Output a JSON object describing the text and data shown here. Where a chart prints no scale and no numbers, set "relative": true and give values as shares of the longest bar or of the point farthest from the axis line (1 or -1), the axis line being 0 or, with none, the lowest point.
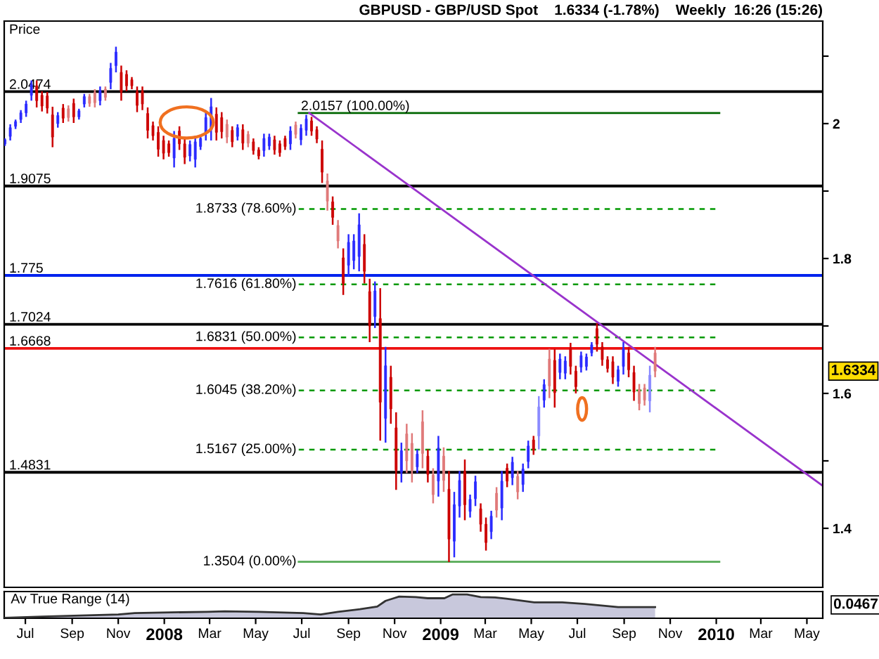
{
  "chart_data": [
    {
      "type": "candlestick",
      "title": "GBPUSD - GBP/USD Spot    1.6334 (-1.78%)    Weekly  16:26 (15:26)",
      "ylabel": "Price",
      "x": [
        "2007-06-04",
        "2007-06-11",
        "2007-06-18",
        "2007-06-25",
        "2007-07-02",
        "2007-07-09",
        "2007-07-16",
        "2007-07-23",
        "2007-07-30",
        "2007-08-06",
        "2007-08-13",
        "2007-08-20",
        "2007-08-27",
        "2007-09-03",
        "2007-09-10",
        "2007-09-17",
        "2007-09-24",
        "2007-10-01",
        "2007-10-08",
        "2007-10-15",
        "2007-10-22",
        "2007-10-29",
        "2007-11-05",
        "2007-11-12",
        "2007-11-19",
        "2007-11-26",
        "2007-12-03",
        "2007-12-10",
        "2007-12-17",
        "2007-12-24",
        "2007-12-31",
        "2008-01-07",
        "2008-01-14",
        "2008-01-21",
        "2008-01-28",
        "2008-02-04",
        "2008-02-11",
        "2008-02-18",
        "2008-02-25",
        "2008-03-03",
        "2008-03-10",
        "2008-03-17",
        "2008-03-24",
        "2008-03-31",
        "2008-04-07",
        "2008-04-14",
        "2008-04-21",
        "2008-04-28",
        "2008-05-05",
        "2008-05-12",
        "2008-05-19",
        "2008-05-26",
        "2008-06-02",
        "2008-06-09",
        "2008-06-16",
        "2008-06-23",
        "2008-06-30",
        "2008-07-07",
        "2008-07-14",
        "2008-07-21",
        "2008-07-28",
        "2008-08-04",
        "2008-08-11",
        "2008-08-18",
        "2008-08-25",
        "2008-09-01",
        "2008-09-08",
        "2008-09-15",
        "2008-09-22",
        "2008-09-29",
        "2008-10-06",
        "2008-10-13",
        "2008-10-20",
        "2008-10-27",
        "2008-11-03",
        "2008-11-10",
        "2008-11-17",
        "2008-11-24",
        "2008-12-01",
        "2008-12-08",
        "2008-12-15",
        "2008-12-22",
        "2008-12-29",
        "2009-01-05",
        "2009-01-12",
        "2009-01-19",
        "2009-01-26",
        "2009-02-02",
        "2009-02-09",
        "2009-02-16",
        "2009-02-23",
        "2009-03-02",
        "2009-03-09",
        "2009-03-16",
        "2009-03-23",
        "2009-03-30",
        "2009-04-06",
        "2009-04-13",
        "2009-04-20",
        "2009-04-27",
        "2009-05-04",
        "2009-05-11",
        "2009-05-18",
        "2009-05-25",
        "2009-06-01",
        "2009-06-08",
        "2009-06-15",
        "2009-06-22",
        "2009-06-29",
        "2009-07-06",
        "2009-07-13",
        "2009-07-20",
        "2009-07-27",
        "2009-08-03",
        "2009-08-10",
        "2009-08-17",
        "2009-08-24",
        "2009-08-31",
        "2009-09-07",
        "2009-09-14",
        "2009-09-21",
        "2009-09-28",
        "2009-10-05",
        "2009-10-12"
      ],
      "ohlc": [
        [
          1.97,
          1.978,
          1.967,
          1.976
        ],
        [
          1.981,
          1.999,
          1.975,
          1.994
        ],
        [
          1.996,
          2.006,
          1.992,
          2.003
        ],
        [
          2.006,
          2.02,
          2.001,
          2.016
        ],
        [
          2.016,
          2.034,
          2.01,
          2.029
        ],
        [
          2.042,
          2.064,
          2.034,
          2.058
        ],
        [
          2.056,
          2.064,
          2.024,
          2.034
        ],
        [
          2.042,
          2.048,
          2.018,
          2.026
        ],
        [
          2.041,
          2.047,
          2.015,
          2.023
        ],
        [
          2.013,
          2.025,
          1.965,
          1.98
        ],
        [
          2.0,
          2.017,
          1.994,
          2.012
        ],
        [
          2.023,
          2.029,
          2.001,
          2.008
        ],
        [
          2.022,
          2.027,
          2.003,
          2.009
        ],
        [
          2.03,
          2.037,
          2.001,
          2.01
        ],
        [
          2.01,
          2.022,
          2.006,
          2.019
        ],
        [
          2.029,
          2.044,
          2.024,
          2.04
        ],
        [
          2.04,
          2.044,
          2.025,
          2.03
        ],
        [
          2.046,
          2.051,
          2.024,
          2.031
        ],
        [
          2.034,
          2.055,
          2.027,
          2.049
        ],
        [
          2.051,
          2.055,
          2.034,
          2.039
        ],
        [
          2.061,
          2.09,
          2.051,
          2.082
        ],
        [
          2.086,
          2.114,
          2.076,
          2.106
        ],
        [
          2.076,
          2.086,
          2.034,
          2.047
        ],
        [
          2.073,
          2.079,
          2.048,
          2.056
        ],
        [
          2.065,
          2.069,
          2.051,
          2.056
        ],
        [
          2.047,
          2.055,
          2.017,
          2.027
        ],
        [
          2.048,
          2.055,
          2.02,
          2.029
        ],
        [
          2.015,
          2.024,
          1.978,
          1.99
        ],
        [
          1.997,
          2.003,
          1.975,
          1.982
        ],
        [
          1.987,
          1.996,
          1.951,
          1.962
        ],
        [
          1.975,
          1.982,
          1.947,
          1.956
        ],
        [
          1.97,
          1.975,
          1.951,
          1.957
        ],
        [
          1.949,
          1.989,
          1.935,
          1.978
        ],
        [
          1.989,
          1.996,
          1.961,
          1.97
        ],
        [
          1.97,
          1.978,
          1.94,
          1.95
        ],
        [
          1.952,
          1.975,
          1.944,
          1.969
        ],
        [
          1.947,
          1.982,
          1.935,
          1.973
        ],
        [
          1.966,
          1.982,
          1.961,
          1.978
        ],
        [
          1.986,
          2.017,
          1.975,
          2.009
        ],
        [
          1.991,
          2.038,
          1.975,
          2.025
        ],
        [
          2.014,
          2.024,
          1.975,
          1.987
        ],
        [
          2.009,
          2.017,
          1.978,
          1.988
        ],
        [
          1.999,
          2.006,
          1.971,
          1.98
        ],
        [
          1.99,
          1.996,
          1.965,
          1.973
        ],
        [
          1.981,
          1.999,
          1.975,
          1.994
        ],
        [
          1.991,
          1.999,
          1.961,
          1.971
        ],
        [
          1.984,
          1.989,
          1.965,
          1.971
        ],
        [
          1.973,
          1.978,
          1.954,
          1.96
        ],
        [
          1.961,
          1.965,
          1.947,
          1.952
        ],
        [
          1.96,
          1.985,
          1.951,
          1.978
        ],
        [
          1.967,
          1.985,
          1.961,
          1.98
        ],
        [
          1.976,
          1.982,
          1.954,
          1.961
        ],
        [
          1.97,
          1.975,
          1.951,
          1.957
        ],
        [
          1.978,
          1.982,
          1.961,
          1.966
        ],
        [
          1.97,
          1.996,
          1.961,
          1.989
        ],
        [
          1.998,
          2.003,
          1.978,
          1.984
        ],
        [
          1.976,
          1.999,
          1.968,
          1.993
        ],
        [
          1.99,
          2.013,
          1.982,
          2.007
        ],
        [
          2.004,
          2.01,
          1.982,
          1.989
        ],
        [
          1.991,
          1.996,
          1.971,
          1.977
        ],
        [
          1.962,
          1.975,
          1.912,
          1.928
        ],
        [
          1.915,
          1.926,
          1.871,
          1.885
        ],
        [
          1.884,
          1.892,
          1.85,
          1.861
        ],
        [
          1.849,
          1.857,
          1.815,
          1.826
        ],
        [
          1.801,
          1.815,
          1.746,
          1.763
        ],
        [
          1.79,
          1.836,
          1.774,
          1.824
        ],
        [
          1.797,
          1.836,
          1.784,
          1.826
        ],
        [
          1.803,
          1.867,
          1.781,
          1.85
        ],
        [
          1.821,
          1.836,
          1.763,
          1.781
        ],
        [
          1.751,
          1.77,
          1.676,
          1.7
        ],
        [
          1.714,
          1.766,
          1.697,
          1.752
        ],
        [
          1.711,
          1.756,
          1.53,
          1.587
        ],
        [
          1.563,
          1.669,
          1.527,
          1.641
        ],
        [
          1.624,
          1.641,
          1.555,
          1.577
        ],
        [
          1.549,
          1.572,
          1.457,
          1.486
        ],
        [
          1.483,
          1.527,
          1.468,
          1.515
        ],
        [
          1.54,
          1.555,
          1.482,
          1.5
        ],
        [
          1.526,
          1.541,
          1.468,
          1.486
        ],
        [
          1.491,
          1.517,
          1.482,
          1.51
        ],
        [
          1.558,
          1.575,
          1.489,
          1.511
        ],
        [
          1.507,
          1.517,
          1.468,
          1.48
        ],
        [
          1.479,
          1.489,
          1.437,
          1.45
        ],
        [
          1.47,
          1.537,
          1.447,
          1.519
        ],
        [
          1.507,
          1.52,
          1.454,
          1.471
        ],
        [
          1.458,
          1.485,
          1.35,
          1.384
        ],
        [
          1.381,
          1.454,
          1.357,
          1.435
        ],
        [
          1.433,
          1.485,
          1.416,
          1.471
        ],
        [
          1.484,
          1.502,
          1.412,
          1.435
        ],
        [
          1.425,
          1.45,
          1.416,
          1.443
        ],
        [
          1.444,
          1.478,
          1.433,
          1.469
        ],
        [
          1.429,
          1.437,
          1.395,
          1.406
        ],
        [
          1.406,
          1.416,
          1.367,
          1.379
        ],
        [
          1.395,
          1.426,
          1.384,
          1.418
        ],
        [
          1.452,
          1.461,
          1.416,
          1.427
        ],
        [
          1.43,
          1.485,
          1.412,
          1.47
        ],
        [
          1.489,
          1.496,
          1.461,
          1.47
        ],
        [
          1.475,
          1.506,
          1.464,
          1.498
        ],
        [
          1.477,
          1.485,
          1.443,
          1.454
        ],
        [
          1.465,
          1.496,
          1.454,
          1.488
        ],
        [
          1.499,
          1.53,
          1.489,
          1.522
        ],
        [
          1.531,
          1.537,
          1.509,
          1.516
        ],
        [
          1.537,
          1.596,
          1.517,
          1.58
        ],
        [
          1.59,
          1.621,
          1.579,
          1.613
        ],
        [
          1.651,
          1.666,
          1.593,
          1.611
        ],
        [
          1.649,
          1.666,
          1.579,
          1.601
        ],
        [
          1.631,
          1.659,
          1.621,
          1.651
        ],
        [
          1.63,
          1.655,
          1.621,
          1.648
        ],
        [
          1.666,
          1.675,
          1.628,
          1.64
        ],
        [
          1.633,
          1.641,
          1.6,
          1.61
        ],
        [
          1.639,
          1.662,
          1.631,
          1.656
        ],
        [
          1.64,
          1.659,
          1.634,
          1.654
        ],
        [
          1.66,
          1.676,
          1.655,
          1.672
        ],
        [
          1.696,
          1.704,
          1.662,
          1.673
        ],
        [
          1.669,
          1.676,
          1.641,
          1.65
        ],
        [
          1.65,
          1.655,
          1.631,
          1.637
        ],
        [
          1.647,
          1.655,
          1.614,
          1.624
        ],
        [
          1.618,
          1.641,
          1.61,
          1.635
        ],
        [
          1.64,
          1.676,
          1.628,
          1.666
        ],
        [
          1.66,
          1.669,
          1.624,
          1.635
        ],
        [
          1.631,
          1.641,
          1.589,
          1.602
        ],
        [
          1.606,
          1.614,
          1.575,
          1.585
        ],
        [
          1.608,
          1.614,
          1.582,
          1.59
        ],
        [
          1.589,
          1.641,
          1.572,
          1.627
        ],
        [
          1.66,
          1.669,
          1.624,
          1.633
        ]
      ],
      "colors": [
        "#2b2bff",
        "#2b2bff",
        "#2b2bff",
        "#2b2bff",
        "#2b2bff",
        "#2b2bff",
        "#cc0000",
        "#cc0000",
        "#cc0000",
        "#cc0000",
        "#2b2bff",
        "#cc0000",
        "#e07a7a",
        "#cc0000",
        "#2b2bff",
        "#2b2bff",
        "#e07a7a",
        "#e07a7a",
        "#2b2bff",
        "#e07a7a",
        "#2b2bff",
        "#2b2bff",
        "#cc0000",
        "#cc0000",
        "#cc0000",
        "#cc0000",
        "#cc0000",
        "#cc0000",
        "#cc0000",
        "#cc0000",
        "#cc0000",
        "#cc0000",
        "#2b2bff",
        "#cc0000",
        "#cc0000",
        "#2b2bff",
        "#2b2bff",
        "#2b2bff",
        "#2b2bff",
        "#2b2bff",
        "#cc0000",
        "#cc0000",
        "#e07a7a",
        "#cc0000",
        "#2b2bff",
        "#cc0000",
        "#e07a7a",
        "#cc0000",
        "#cc0000",
        "#2b2bff",
        "#2b2bff",
        "#cc0000",
        "#cc0000",
        "#cc0000",
        "#2b2bff",
        "#e07a7a",
        "#2b2bff",
        "#2b2bff",
        "#cc0000",
        "#cc0000",
        "#cc0000",
        "#e07a7a",
        "#cc0000",
        "#e07a7a",
        "#cc0000",
        "#2b2bff",
        "#2b2bff",
        "#2b2bff",
        "#cc0000",
        "#cc0000",
        "#2b2bff",
        "#cc0000",
        "#2b2bff",
        "#cc0000",
        "#cc0000",
        "#2b2bff",
        "#e07a7a",
        "#e07a7a",
        "#2b2bff",
        "#e07a7a",
        "#cc0000",
        "#e07a7a",
        "#2b2bff",
        "#e07a7a",
        "#cc0000",
        "#2b2bff",
        "#2b2bff",
        "#cc0000",
        "#2b2bff",
        "#2b2bff",
        "#cc0000",
        "#cc0000",
        "#2b2bff",
        "#e07a7a",
        "#2b2bff",
        "#cc0000",
        "#2b2bff",
        "#e07a7a",
        "#2b2bff",
        "#2b2bff",
        "#cc0000",
        "#8a8aff",
        "#2b2bff",
        "#e07a7a",
        "#cc0000",
        "#2b2bff",
        "#2b2bff",
        "#cc0000",
        "#cc0000",
        "#2b2bff",
        "#2b2bff",
        "#2b2bff",
        "#cc0000",
        "#cc0000",
        "#cc0000",
        "#cc0000",
        "#2b2bff",
        "#2b2bff",
        "#cc0000",
        "#cc0000",
        "#e07a7a",
        "#e07a7a",
        "#8a8aff",
        "#e07a7a"
      ],
      "series": [
        {
          "type": "line",
          "name": "2.0157 (100.00%)",
          "color": "#006600",
          "line_style": "solid",
          "x": [
            "2008-06-27",
            "2010-01-05"
          ],
          "values": [
            2.0157,
            2.0157
          ]
        },
        {
          "type": "line",
          "name": "1.8733 (78.60%)",
          "color": "#009900",
          "line_style": "dashed",
          "x": [
            "2008-06-27",
            "2010-01-05"
          ],
          "values": [
            1.8733,
            1.8733
          ]
        },
        {
          "type": "line",
          "name": "1.7616 (61.80%)",
          "color": "#009900",
          "line_style": "dashed",
          "x": [
            "2008-06-27",
            "2010-01-05"
          ],
          "values": [
            1.7616,
            1.7616
          ]
        },
        {
          "type": "line",
          "name": "1.6831 (50.00%)",
          "color": "#009900",
          "line_style": "dashed",
          "x": [
            "2008-06-27",
            "2010-01-05"
          ],
          "values": [
            1.6831,
            1.6831
          ]
        },
        {
          "type": "line",
          "name": "1.6045 (38.20%)",
          "color": "#009900",
          "line_style": "dashed",
          "x": [
            "2008-06-27",
            "2010-01-05"
          ],
          "values": [
            1.6045,
            1.6045
          ]
        },
        {
          "type": "line",
          "name": "1.5167 (25.00%)",
          "color": "#009900",
          "line_style": "dashed",
          "x": [
            "2008-06-27",
            "2010-01-05"
          ],
          "values": [
            1.5167,
            1.5167
          ]
        },
        {
          "type": "line",
          "name": "1.3504 (0.00%)",
          "color": "#55aa55",
          "line_style": "solid",
          "x": [
            "2008-06-27",
            "2010-01-05"
          ],
          "values": [
            1.3504,
            1.3504
          ]
        },
        {
          "type": "line",
          "color": "#9933cc",
          "line_style": "solid",
          "x": [
            "2008-07-11",
            "2010-05-22"
          ],
          "values": [
            2.0157,
            1.463
          ]
        }
      ],
      "ref_lines": [
        {
          "axis": "y",
          "value": 2.0474,
          "label": "2.0474",
          "color": "#000000"
        },
        {
          "axis": "y",
          "value": 1.9075,
          "label": "1.9075",
          "color": "#000000"
        },
        {
          "axis": "y",
          "value": 1.775,
          "label": "1.775",
          "color": "#0022ee"
        },
        {
          "axis": "y",
          "value": 1.7024,
          "label": "1.7024",
          "color": "#000000"
        },
        {
          "axis": "y",
          "value": 1.6668,
          "label": "1.6668",
          "color": "#ee1111"
        },
        {
          "axis": "y",
          "value": 1.4831,
          "label": "1.4831",
          "color": "#000000"
        }
      ],
      "annotations": [
        "1.6334"
      ],
      "xlim": [
        "2007-06-03",
        "2010-05-22"
      ],
      "ylim": [
        1.3125,
        2.152
      ],
      "yticks": [
        {
          "value": 1.4,
          "label": "1.4"
        },
        {
          "value": 1.5,
          "label": null
        },
        {
          "value": 1.6,
          "label": "1.6"
        },
        {
          "value": 1.7,
          "label": null
        },
        {
          "value": 1.8,
          "label": "1.8"
        },
        {
          "value": 1.9,
          "label": null
        },
        {
          "value": 2,
          "label": "2"
        },
        {
          "value": 2.1,
          "label": null
        }
      ],
      "tick_labels": "y"
    },
    {
      "type": "area",
      "title": "Av True Range (14)",
      "relative": true,
      "series": [
        {
          "color": "#c8c8dc",
          "x": [
            "2007-06-04",
            "2007-07-24",
            "2007-11-01",
            "2007-11-23",
            "2008-02-27",
            "2008-03-21",
            "2008-05-05",
            "2008-07-03",
            "2008-07-26",
            "2008-08-18",
            "2008-09-16",
            "2008-10-09",
            "2008-10-20",
            "2008-10-31",
            "2008-11-07",
            "2008-11-29",
            "2008-12-15",
            "2009-01-06",
            "2009-01-17",
            "2009-02-05",
            "2009-02-23",
            "2009-03-14",
            "2009-03-29",
            "2009-05-05",
            "2009-06-11",
            "2009-07-11",
            "2009-08-24",
            "2009-10-12"
          ],
          "values": [
            0.02,
            0.07,
            0.16,
            0.22,
            0.27,
            0.29,
            0.27,
            0.22,
            0.16,
            0.27,
            0.38,
            0.49,
            0.73,
            0.84,
            0.91,
            0.89,
            0.84,
            0.84,
            1.0,
            1.0,
            0.89,
            0.87,
            0.82,
            0.67,
            0.67,
            0.6,
            0.47,
            0.47
          ]
        }
      ],
      "annotations": [
        "0.0467"
      ],
      "xlim": [
        "2007-06-03",
        "2010-05-22"
      ],
      "xticks": [
        {
          "value": "2007-07-01",
          "label": "Jul"
        },
        {
          "value": "2007-09-01",
          "label": "Sep"
        },
        {
          "value": "2007-11-01",
          "label": "Nov"
        },
        {
          "value": "2008-01-01",
          "label": "2008"
        },
        {
          "value": "2008-03-01",
          "label": "Mar"
        },
        {
          "value": "2008-05-01",
          "label": "May"
        },
        {
          "value": "2008-07-01",
          "label": "Jul"
        },
        {
          "value": "2008-09-01",
          "label": "Sep"
        },
        {
          "value": "2008-11-01",
          "label": "Nov"
        },
        {
          "value": "2009-01-01",
          "label": "2009"
        },
        {
          "value": "2009-03-01",
          "label": "Mar"
        },
        {
          "value": "2009-05-01",
          "label": "May"
        },
        {
          "value": "2009-07-01",
          "label": "Jul"
        },
        {
          "value": "2009-09-01",
          "label": "Sep"
        },
        {
          "value": "2009-11-01",
          "label": "Nov"
        },
        {
          "value": "2010-01-01",
          "label": "2010"
        },
        {
          "value": "2010-03-01",
          "label": "Mar"
        },
        {
          "value": "2010-05-01",
          "label": "May"
        }
      ],
      "tick_labels": "x"
    }
  ]
}
